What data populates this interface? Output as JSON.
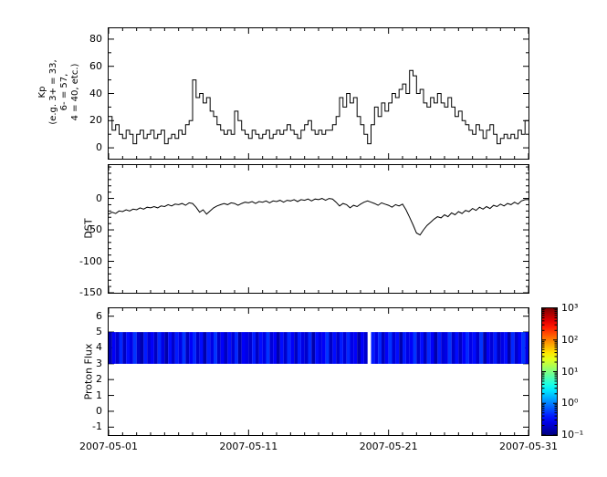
{
  "figure": {
    "background": "#ffffff",
    "x_axis": {
      "tick_labels": [
        "2007-05-01",
        "2007-05-11",
        "2007-05-21",
        "2007-05-31"
      ],
      "tick_days": [
        0,
        10,
        20,
        30
      ],
      "range_days": [
        0,
        30
      ],
      "minor_step_days": 1
    }
  },
  "chart_data": [
    {
      "id": "kp",
      "type": "line",
      "mode": "step",
      "ylabel_lines": [
        "Kp",
        "(e.g. 3+ = 33,",
        "6- = 57,",
        "4 = 40, etc.)"
      ],
      "ylim": [
        -8,
        88
      ],
      "yticks": [
        0,
        20,
        40,
        60,
        80
      ],
      "ytick_minor_step": 10,
      "line_color": "#000000",
      "start_date": "2007-05-01",
      "sample_step_days": 0.25,
      "values": [
        23,
        13,
        17,
        10,
        7,
        13,
        10,
        3,
        10,
        13,
        7,
        10,
        13,
        7,
        10,
        13,
        3,
        7,
        10,
        7,
        13,
        10,
        17,
        20,
        50,
        37,
        40,
        33,
        37,
        27,
        23,
        17,
        13,
        10,
        13,
        10,
        27,
        20,
        13,
        10,
        7,
        13,
        10,
        7,
        10,
        13,
        7,
        10,
        13,
        10,
        13,
        17,
        13,
        10,
        7,
        13,
        17,
        20,
        13,
        10,
        13,
        10,
        13,
        13,
        17,
        23,
        37,
        30,
        40,
        33,
        37,
        23,
        17,
        10,
        3,
        17,
        30,
        23,
        33,
        27,
        33,
        40,
        37,
        43,
        47,
        40,
        57,
        53,
        40,
        43,
        33,
        30,
        37,
        33,
        40,
        33,
        30,
        37,
        30,
        23,
        27,
        20,
        17,
        13,
        10,
        17,
        13,
        7,
        13,
        17,
        10,
        3,
        7,
        10,
        7,
        10,
        7,
        13,
        10,
        20
      ]
    },
    {
      "id": "dst",
      "type": "line",
      "mode": "linear",
      "ylabel": "DST",
      "ylim": [
        -150,
        53
      ],
      "yticks": [
        0,
        -50,
        -100,
        -150
      ],
      "ytick_minor_step": 10,
      "line_color": "#000000",
      "start_date": "2007-05-01",
      "sample_step_days": 0.25,
      "values": [
        -25,
        -22,
        -24,
        -20,
        -21,
        -18,
        -20,
        -17,
        -18,
        -15,
        -17,
        -14,
        -15,
        -13,
        -15,
        -12,
        -13,
        -10,
        -12,
        -9,
        -10,
        -8,
        -11,
        -7,
        -8,
        -14,
        -22,
        -18,
        -25,
        -20,
        -15,
        -12,
        -10,
        -8,
        -10,
        -7,
        -8,
        -11,
        -8,
        -6,
        -7,
        -5,
        -8,
        -5,
        -6,
        -4,
        -7,
        -4,
        -5,
        -3,
        -6,
        -3,
        -4,
        -2,
        -5,
        -2,
        -3,
        -1,
        -4,
        -1,
        -2,
        0,
        -3,
        0,
        -1,
        -6,
        -12,
        -8,
        -10,
        -15,
        -11,
        -13,
        -9,
        -6,
        -4,
        -6,
        -8,
        -11,
        -7,
        -9,
        -11,
        -14,
        -10,
        -12,
        -9,
        -18,
        -30,
        -42,
        -55,
        -58,
        -50,
        -43,
        -38,
        -33,
        -29,
        -31,
        -26,
        -29,
        -23,
        -26,
        -21,
        -24,
        -19,
        -21,
        -16,
        -19,
        -14,
        -17,
        -13,
        -16,
        -11,
        -13,
        -9,
        -12,
        -8,
        -10,
        -6,
        -9,
        -4,
        -2
      ]
    },
    {
      "id": "proton_flux",
      "type": "heatmap",
      "ylabel": "Proton Flux",
      "ylim": [
        -1.5,
        6.5
      ],
      "yticks": [
        -1,
        0,
        1,
        2,
        3,
        4,
        5,
        6
      ],
      "band_y_range": [
        3,
        5
      ],
      "scale": "log",
      "value_range": [
        0.1,
        1000
      ],
      "colormap": "jet",
      "start_date": "2007-05-01",
      "sample_step_days": 0.25,
      "values": [
        0.15,
        0.3,
        0.2,
        0.45,
        0.18,
        0.35,
        0.25,
        0.5,
        0.2,
        0.15,
        0.4,
        0.22,
        0.3,
        0.18,
        0.45,
        0.25,
        0.15,
        0.35,
        0.2,
        0.4,
        0.25,
        0.5,
        0.18,
        0.3,
        0.45,
        0.2,
        0.35,
        0.15,
        0.4,
        0.25,
        0.5,
        0.2,
        0.3,
        0.18,
        0.35,
        0.22,
        0.45,
        0.15,
        0.3,
        0.25,
        0.2,
        0.4,
        0.18,
        0.35,
        0.25,
        0.5,
        0.22,
        0.3,
        0.15,
        0.35,
        0.2,
        0.45,
        0.3,
        0.18,
        0.4,
        0.25,
        0.2,
        0.45,
        0.15,
        0.35,
        0.25,
        0.3,
        0.5,
        0.18,
        0.35,
        0.2,
        0.4,
        0.22,
        0.45,
        0.25,
        0.3,
        0.15,
        0.3,
        0.2,
        null,
        0.4,
        0.25,
        0.45,
        0.18,
        0.3,
        0.5,
        0.22,
        0.35,
        0.15,
        0.4,
        0.25,
        0.3,
        0.5,
        0.2,
        0.35,
        0.18,
        0.45,
        0.3,
        0.15,
        0.4,
        0.22,
        0.25,
        0.5,
        0.2,
        0.35,
        0.18,
        0.3,
        0.45,
        0.25,
        0.35,
        0.2,
        0.5,
        0.15,
        0.3,
        0.22,
        0.4,
        0.18,
        0.25,
        0.35,
        0.15,
        0.45,
        0.2,
        0.3,
        0.5,
        0.25
      ],
      "colorbar": {
        "tick_labels": [
          "10³",
          "10²",
          "10¹",
          "10⁰",
          "10⁻¹"
        ],
        "tick_values": [
          1000,
          100,
          10,
          1,
          0.1
        ]
      }
    }
  ]
}
